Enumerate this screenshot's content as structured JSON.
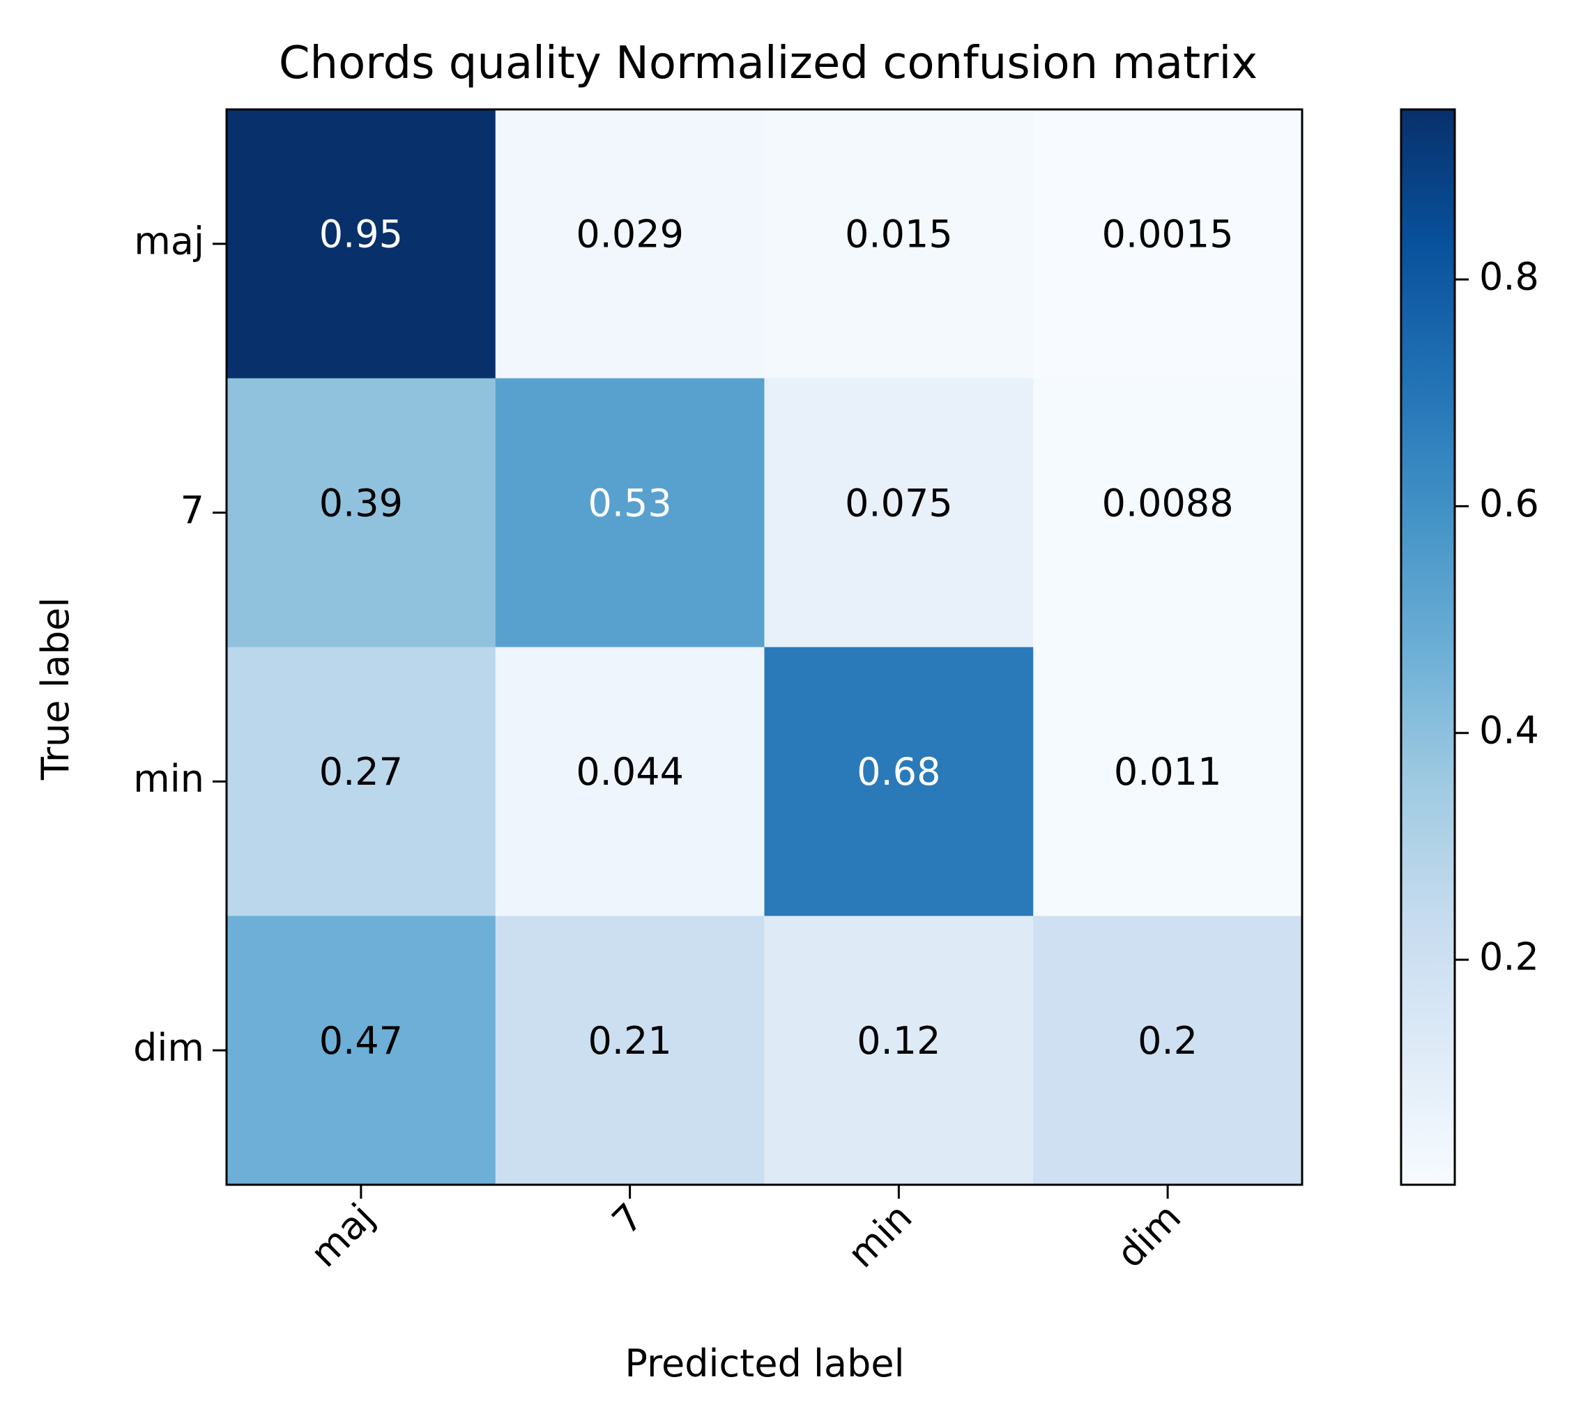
{
  "chart_data": {
    "type": "heatmap",
    "title": "Chords quality Normalized confusion matrix",
    "xlabel": "Predicted label",
    "ylabel": "True label",
    "x_categories": [
      "maj",
      "7",
      "min",
      "dim"
    ],
    "y_categories": [
      "maj",
      "7",
      "min",
      "dim"
    ],
    "values": [
      [
        0.95,
        0.029,
        0.015,
        0.0015
      ],
      [
        0.39,
        0.53,
        0.075,
        0.0088
      ],
      [
        0.27,
        0.044,
        0.68,
        0.011
      ],
      [
        0.47,
        0.21,
        0.12,
        0.2
      ]
    ],
    "value_labels": [
      [
        "0.95",
        "0.029",
        "0.015",
        "0.0015"
      ],
      [
        "0.39",
        "0.53",
        "0.075",
        "0.0088"
      ],
      [
        "0.27",
        "0.044",
        "0.68",
        "0.011"
      ],
      [
        "0.47",
        "0.21",
        "0.12",
        "0.2"
      ]
    ],
    "colormap": "Blues",
    "color_range": [
      0.0015,
      0.95
    ],
    "colorbar": {
      "ticks": [
        0.2,
        0.4,
        0.6,
        0.8
      ],
      "tick_labels": [
        "0.2",
        "0.4",
        "0.6",
        "0.8"
      ]
    },
    "text_colors": {
      "dark": "#000000",
      "light": "#ffffff"
    }
  }
}
